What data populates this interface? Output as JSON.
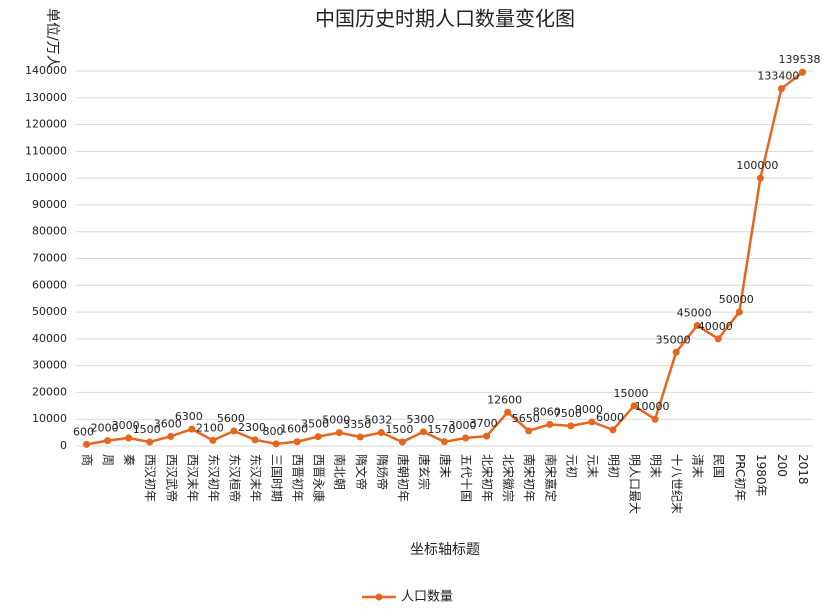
{
  "chart_data": {
    "type": "line",
    "title": "中国历史时期人口数量变化图",
    "y_label": "单位/万人",
    "x_label": "坐标轴标题",
    "categories": [
      "商",
      "周",
      "秦",
      "西汉初年",
      "西汉武帝",
      "西汉末年",
      "东汉初年",
      "东汉桓帝",
      "东汉末年",
      "三国时期",
      "西晋初年",
      "西晋永康",
      "南北朝",
      "隋文帝",
      "隋炀帝",
      "唐朝初年",
      "唐玄宗",
      "唐末",
      "五代十国",
      "北宋初年",
      "北宋徽宗",
      "南宋初年",
      "南宋嘉定",
      "元初",
      "元末",
      "明初",
      "明人口最大",
      "明末",
      "十八世纪末",
      "清末",
      "民国",
      "PRC初年",
      "1980年",
      "200",
      "2018"
    ],
    "series": [
      {
        "name": "人口数量",
        "color": "#e8651e",
        "values": [
          600,
          2000,
          3000,
          1500,
          3600,
          6300,
          2100,
          5600,
          2300,
          800,
          1600,
          3500,
          5000,
          3350,
          5032,
          1500,
          5300,
          1570,
          3000,
          3700,
          12600,
          5650,
          8060,
          7500,
          9000,
          6000,
          15000,
          10000,
          35000,
          45000,
          40000,
          50000,
          100000,
          133400,
          139538
        ]
      }
    ],
    "ylim": [
      0,
      140000
    ],
    "yticks": [
      0,
      10000,
      20000,
      30000,
      40000,
      50000,
      60000,
      70000,
      80000,
      90000,
      100000,
      110000,
      120000,
      130000,
      140000
    ],
    "grid": true,
    "legend": "bottom"
  }
}
